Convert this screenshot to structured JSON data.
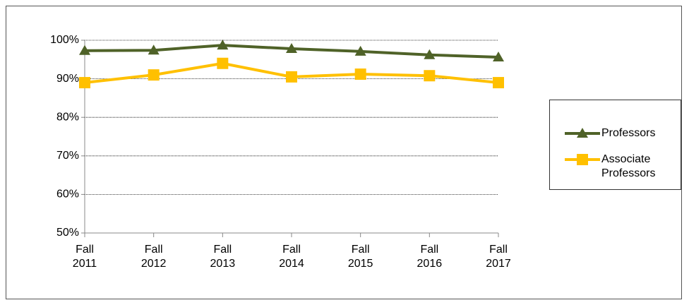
{
  "chart_data": {
    "type": "line",
    "categories": [
      "Fall 2011",
      "Fall 2012",
      "Fall 2013",
      "Fall 2014",
      "Fall 2015",
      "Fall 2016",
      "Fall 2017"
    ],
    "series": [
      {
        "name": "Professors",
        "color": "#4f6228",
        "marker": "triangle",
        "values": [
          97.3,
          97.4,
          98.7,
          97.8,
          97.1,
          96.2,
          95.6
        ]
      },
      {
        "name": "Associate Professors",
        "color": "#ffc000",
        "marker": "square",
        "values": [
          89.0,
          91.0,
          94.0,
          90.5,
          91.2,
          90.8,
          89.0
        ]
      }
    ],
    "ylim": [
      50,
      100
    ],
    "yticks": [
      {
        "value": 50,
        "label": "50%"
      },
      {
        "value": 60,
        "label": "60%"
      },
      {
        "value": 70,
        "label": "70%"
      },
      {
        "value": 80,
        "label": "80%"
      },
      {
        "value": 90,
        "label": "90%"
      },
      {
        "value": 100,
        "label": "100%"
      }
    ],
    "grid": true,
    "legend": "right"
  }
}
